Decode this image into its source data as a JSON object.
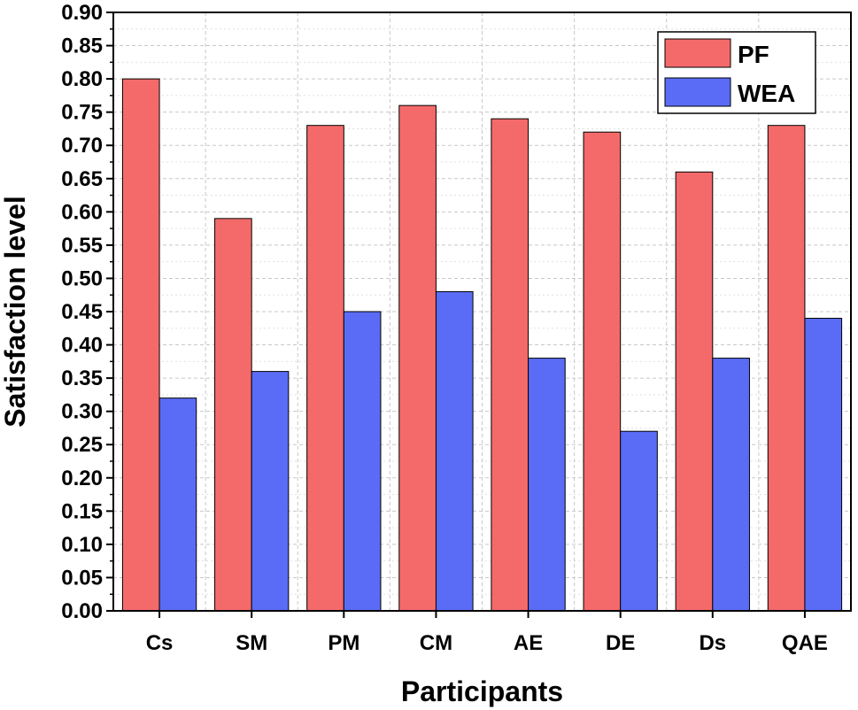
{
  "chart_data": {
    "type": "bar",
    "title": "",
    "xlabel": "Participants",
    "ylabel": "Satisfaction level",
    "categories": [
      "Cs",
      "SM",
      "PM",
      "CM",
      "AE",
      "DE",
      "Ds",
      "QAE"
    ],
    "series": [
      {
        "name": "PF",
        "color": "#f46a6a",
        "values": [
          0.8,
          0.59,
          0.73,
          0.76,
          0.74,
          0.72,
          0.66,
          0.73
        ]
      },
      {
        "name": "WEA",
        "color": "#5a6cf5",
        "values": [
          0.32,
          0.36,
          0.45,
          0.48,
          0.38,
          0.27,
          0.38,
          0.44
        ]
      }
    ],
    "ylim": [
      0,
      0.9
    ],
    "yticks": [
      "0.00",
      "0.05",
      "0.10",
      "0.15",
      "0.20",
      "0.25",
      "0.30",
      "0.35",
      "0.40",
      "0.45",
      "0.50",
      "0.55",
      "0.60",
      "0.65",
      "0.70",
      "0.75",
      "0.80",
      "0.85",
      "0.90"
    ],
    "grid": true,
    "legend_position": "top-right"
  }
}
